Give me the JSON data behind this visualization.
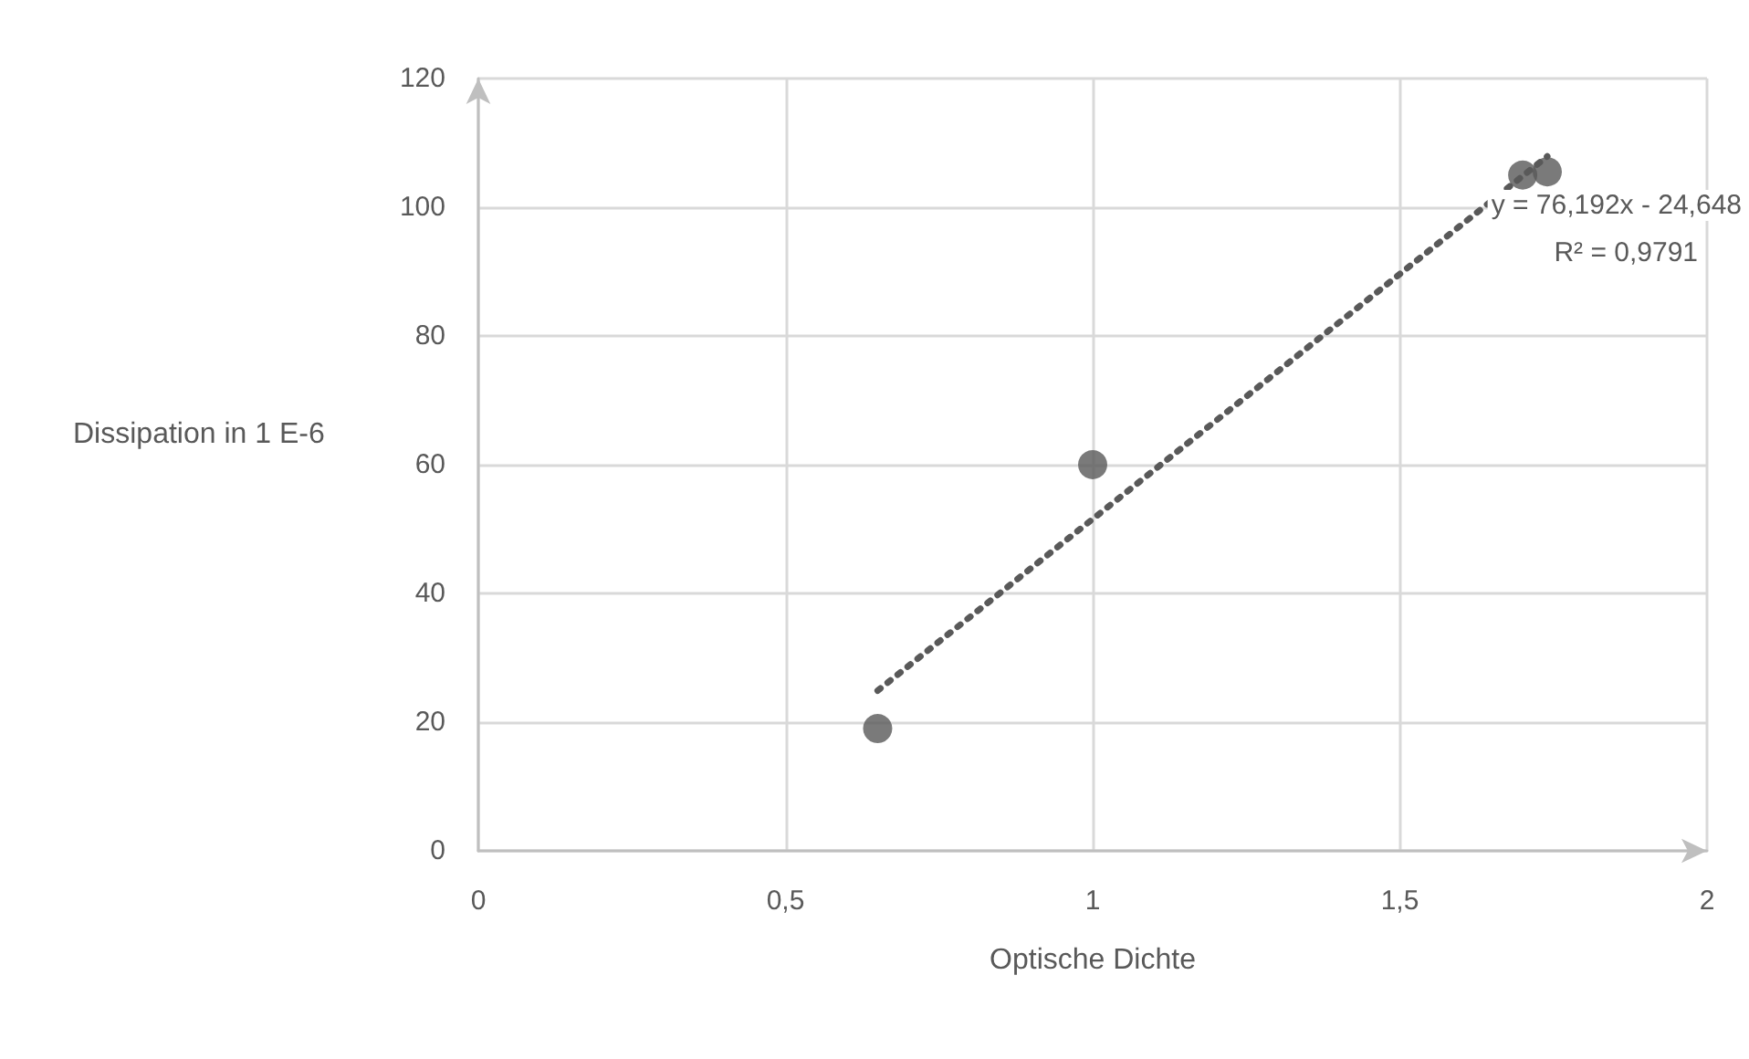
{
  "chart_data": {
    "type": "scatter",
    "xlabel": "Optische Dichte",
    "ylabel": "Dissipation in 1 E-6",
    "xlim": [
      0,
      2
    ],
    "xticks": [
      0,
      {
        "value": 0.5,
        "label": "0,5"
      },
      1,
      {
        "value": 1.5,
        "label": "1,5"
      },
      2
    ],
    "ylim": [
      0,
      120
    ],
    "yticks": [
      0,
      20,
      40,
      60,
      80,
      100,
      120
    ],
    "grid": true,
    "series": [
      {
        "color": "#595959",
        "marker": "circle",
        "x": [
          0.65,
          1,
          1.7,
          1.74
        ],
        "values": [
          19,
          60,
          105,
          105.5
        ]
      },
      {
        "type": "line",
        "color": "#595959",
        "marker": "none",
        "line_style": "dotted",
        "x": [
          0.65,
          1.74
        ],
        "values": [
          24.9,
          107.9
        ]
      }
    ],
    "annotations": [
      "y = 76,192x - 24,648",
      "R² = 0,9791"
    ]
  }
}
